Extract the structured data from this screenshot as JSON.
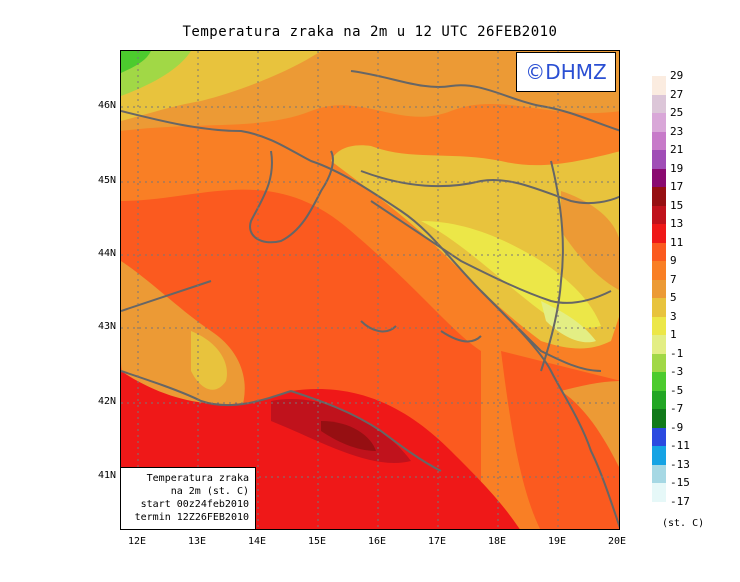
{
  "title": "Temperatura zraka na 2m u 12 UTC 26FEB2010",
  "logo": "©DHMZ",
  "info": {
    "line1": "Temperatura zraka",
    "line2": "na 2m (st. C)",
    "line3": "start 00z24feb2010",
    "line4": "termin 12Z26FEB2010"
  },
  "lat_labels": [
    "46N",
    "45N",
    "44N",
    "43N",
    "42N",
    "41N"
  ],
  "lon_labels": [
    "12E",
    "13E",
    "14E",
    "15E",
    "16E",
    "17E",
    "18E",
    "19E",
    "20E"
  ],
  "colorbar": {
    "unit": "(st. C)",
    "labels": [
      "29",
      "27",
      "25",
      "23",
      "21",
      "19",
      "17",
      "15",
      "13",
      "11",
      "9",
      "7",
      "5",
      "3",
      "1",
      "-1",
      "-3",
      "-5",
      "-7",
      "-9",
      "-11",
      "-13",
      "-15",
      "-17"
    ],
    "colors": [
      "#fbece0",
      "#dcc6d8",
      "#d9a7d8",
      "#c77ac9",
      "#a04db6",
      "#8a0a70",
      "#960f12",
      "#c0121c",
      "#ef1818",
      "#fb5a1f",
      "#f97f25",
      "#ec9a35",
      "#e8c33d",
      "#ece748",
      "#e3ee84",
      "#a1d846",
      "#4ccb2e",
      "#22a624",
      "#117a1a",
      "#2b4ae0",
      "#16a3e4",
      "#a6d8e4",
      "#e6f8f8"
    ]
  }
}
